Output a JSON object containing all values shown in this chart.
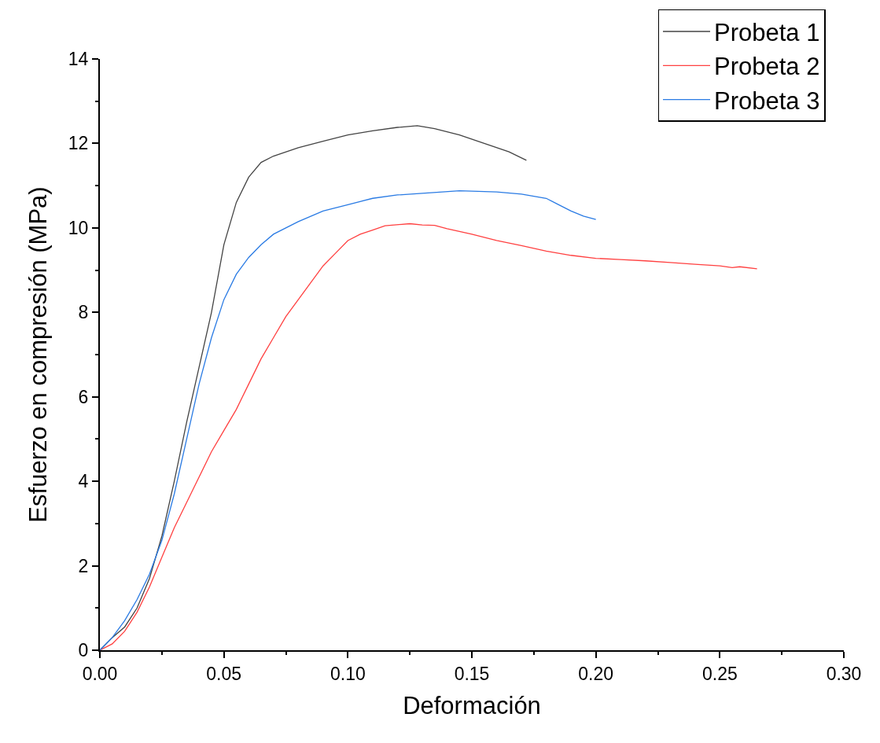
{
  "chart_data": {
    "type": "line",
    "xlabel": "Deformación",
    "ylabel": "Esfuerzo en compresión (MPa)",
    "xlim": [
      0,
      0.3
    ],
    "xticks": [
      {
        "value": 0,
        "label": "0.00"
      },
      {
        "value": 0.025,
        "label": null
      },
      {
        "value": 0.05,
        "label": "0.05"
      },
      {
        "value": 0.075,
        "label": null
      },
      {
        "value": 0.1,
        "label": "0.10"
      },
      {
        "value": 0.125,
        "label": null
      },
      {
        "value": 0.15,
        "label": "0.15"
      },
      {
        "value": 0.175,
        "label": null
      },
      {
        "value": 0.2,
        "label": "0.20"
      },
      {
        "value": 0.225,
        "label": null
      },
      {
        "value": 0.25,
        "label": "0.25"
      },
      {
        "value": 0.275,
        "label": null
      },
      {
        "value": 0.3,
        "label": "0.30"
      }
    ],
    "ylim": [
      0,
      14
    ],
    "yticks": [
      0,
      {
        "value": 1,
        "label": null
      },
      2,
      {
        "value": 3,
        "label": null
      },
      4,
      {
        "value": 5,
        "label": null
      },
      6,
      {
        "value": 7,
        "label": null
      },
      8,
      {
        "value": 9,
        "label": null
      },
      10,
      {
        "value": 11,
        "label": null
      },
      12,
      {
        "value": 13,
        "label": null
      },
      14
    ],
    "grid": false,
    "legend": "top right",
    "marker": "none",
    "line_style": "solid",
    "series": [
      {
        "name": "Probeta 1",
        "color": "#444444",
        "x": [
          0,
          0.005,
          0.01,
          0.015,
          0.02,
          0.025,
          0.03,
          0.035,
          0.04,
          0.045,
          0.05,
          0.055,
          0.06,
          0.065,
          0.07,
          0.08,
          0.09,
          0.1,
          0.11,
          0.12,
          0.128,
          0.135,
          0.145,
          0.155,
          0.165,
          0.172
        ],
        "values": [
          0,
          0.3,
          0.55,
          1.0,
          1.7,
          2.7,
          4.0,
          5.4,
          6.7,
          8.0,
          9.6,
          10.6,
          11.2,
          11.55,
          11.7,
          11.9,
          12.05,
          12.2,
          12.3,
          12.38,
          12.42,
          12.35,
          12.2,
          12.0,
          11.8,
          11.6
        ]
      },
      {
        "name": "Probeta 2",
        "color": "#ff4040",
        "x": [
          0,
          0.005,
          0.01,
          0.015,
          0.02,
          0.025,
          0.03,
          0.035,
          0.04,
          0.045,
          0.05,
          0.055,
          0.06,
          0.065,
          0.07,
          0.075,
          0.08,
          0.085,
          0.09,
          0.095,
          0.1,
          0.105,
          0.11,
          0.115,
          0.125,
          0.13,
          0.135,
          0.14,
          0.15,
          0.16,
          0.17,
          0.18,
          0.19,
          0.2,
          0.21,
          0.22,
          0.23,
          0.24,
          0.25,
          0.255,
          0.258,
          0.265
        ],
        "values": [
          0,
          0.15,
          0.45,
          0.9,
          1.5,
          2.2,
          2.9,
          3.5,
          4.1,
          4.7,
          5.2,
          5.7,
          6.3,
          6.9,
          7.4,
          7.9,
          8.3,
          8.7,
          9.1,
          9.4,
          9.7,
          9.85,
          9.95,
          10.05,
          10.1,
          10.07,
          10.06,
          9.98,
          9.85,
          9.7,
          9.58,
          9.45,
          9.35,
          9.28,
          9.25,
          9.22,
          9.18,
          9.14,
          9.1,
          9.06,
          9.08,
          9.03
        ]
      },
      {
        "name": "Probeta 3",
        "color": "#2a7be4",
        "x": [
          0,
          0.005,
          0.01,
          0.015,
          0.02,
          0.025,
          0.03,
          0.035,
          0.04,
          0.045,
          0.05,
          0.055,
          0.06,
          0.065,
          0.07,
          0.08,
          0.09,
          0.1,
          0.11,
          0.12,
          0.13,
          0.145,
          0.16,
          0.17,
          0.18,
          0.185,
          0.19,
          0.195,
          0.2
        ],
        "values": [
          0,
          0.3,
          0.7,
          1.2,
          1.8,
          2.6,
          3.7,
          5.0,
          6.3,
          7.4,
          8.3,
          8.9,
          9.3,
          9.6,
          9.85,
          10.15,
          10.4,
          10.55,
          10.7,
          10.78,
          10.82,
          10.88,
          10.85,
          10.8,
          10.7,
          10.55,
          10.4,
          10.28,
          10.2
        ]
      }
    ]
  }
}
